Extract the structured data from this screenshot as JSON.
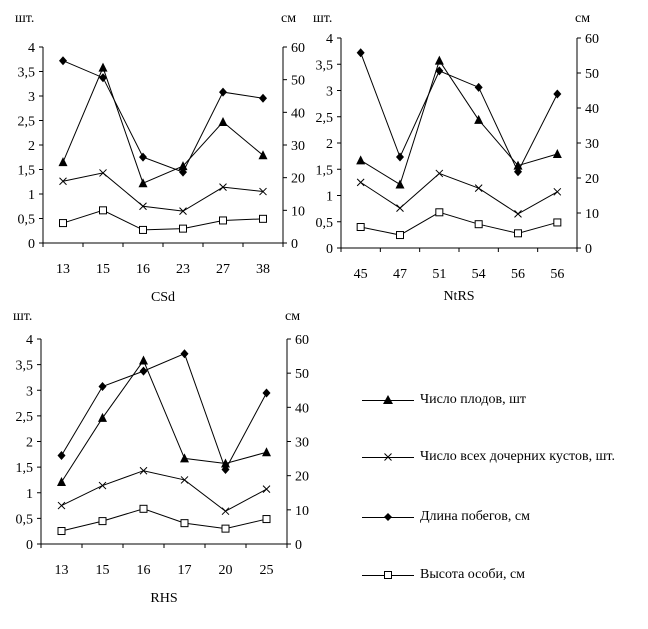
{
  "chart_data": [
    {
      "type": "line",
      "title": "CSd",
      "left_unit": "шт.",
      "right_unit": "см",
      "categories": [
        "13",
        "15",
        "16",
        "23",
        "27",
        "38"
      ],
      "left_ticks": [
        "0",
        "0,5",
        "1",
        "1,5",
        "2",
        "2,5",
        "3",
        "3,5",
        "4"
      ],
      "right_ticks": [
        "0",
        "10",
        "20",
        "30",
        "40",
        "50",
        "60"
      ],
      "ylim_left": [
        0,
        4
      ],
      "ylim_right": [
        0,
        60
      ],
      "series": [
        {
          "key": "fruits",
          "axis": "left",
          "marker": "triangle",
          "values": [
            1.65,
            3.58,
            1.22,
            1.57,
            2.47,
            1.79
          ]
        },
        {
          "key": "bushes",
          "axis": "left",
          "marker": "x",
          "values": [
            1.26,
            1.43,
            0.75,
            0.65,
            1.14,
            1.05
          ]
        },
        {
          "key": "shoots",
          "axis": "right",
          "marker": "diamond",
          "values": [
            55.8,
            50.6,
            26.3,
            21.7,
            46.2,
            44.3
          ]
        },
        {
          "key": "height",
          "axis": "right",
          "marker": "square",
          "values": [
            6.1,
            10.0,
            4.0,
            4.4,
            6.9,
            7.4
          ]
        }
      ]
    },
    {
      "type": "line",
      "title": "NtRS",
      "left_unit": "шт.",
      "right_unit": "см",
      "categories": [
        "45",
        "47",
        "51",
        "54",
        "56",
        "56"
      ],
      "left_ticks": [
        "0",
        "0,5",
        "1",
        "1,5",
        "2",
        "2,5",
        "3",
        "3,5",
        "4"
      ],
      "right_ticks": [
        "0",
        "10",
        "20",
        "30",
        "40",
        "50",
        "60"
      ],
      "ylim_left": [
        0,
        4
      ],
      "ylim_right": [
        0,
        60
      ],
      "series": [
        {
          "key": "fruits",
          "axis": "left",
          "marker": "triangle",
          "values": [
            1.67,
            1.21,
            3.57,
            2.44,
            1.57,
            1.79
          ]
        },
        {
          "key": "bushes",
          "axis": "left",
          "marker": "x",
          "values": [
            1.25,
            0.76,
            1.42,
            1.14,
            0.65,
            1.07
          ]
        },
        {
          "key": "shoots",
          "axis": "right",
          "marker": "diamond",
          "values": [
            55.8,
            26.0,
            50.6,
            45.9,
            21.8,
            44.0
          ]
        },
        {
          "key": "height",
          "axis": "right",
          "marker": "square",
          "values": [
            6.0,
            3.7,
            10.2,
            6.8,
            4.2,
            7.3
          ]
        }
      ]
    },
    {
      "type": "line",
      "title": "RHS",
      "left_unit": "шт.",
      "right_unit": "см",
      "categories": [
        "13",
        "15",
        "16",
        "17",
        "20",
        "25"
      ],
      "left_ticks": [
        "0",
        "0,5",
        "1",
        "1,5",
        "2",
        "2,5",
        "3",
        "3,5",
        "4"
      ],
      "right_ticks": [
        "0",
        "10",
        "20",
        "30",
        "40",
        "50",
        "60"
      ],
      "ylim_left": [
        0,
        4
      ],
      "ylim_right": [
        0,
        60
      ],
      "series": [
        {
          "key": "fruits",
          "axis": "left",
          "marker": "triangle",
          "values": [
            1.21,
            2.46,
            3.58,
            1.67,
            1.57,
            1.79
          ]
        },
        {
          "key": "bushes",
          "axis": "left",
          "marker": "x",
          "values": [
            0.75,
            1.14,
            1.43,
            1.25,
            0.64,
            1.07
          ]
        },
        {
          "key": "shoots",
          "axis": "right",
          "marker": "diamond",
          "values": [
            25.9,
            46.1,
            50.6,
            55.7,
            21.8,
            44.2
          ]
        },
        {
          "key": "height",
          "axis": "right",
          "marker": "square",
          "values": [
            3.8,
            6.7,
            10.3,
            6.1,
            4.5,
            7.3
          ]
        }
      ]
    }
  ],
  "legend": [
    {
      "key": "fruits",
      "marker": "triangle",
      "label": "Число плодов, шт"
    },
    {
      "key": "bushes",
      "marker": "x",
      "label": "Число всех дочерних кустов, шт."
    },
    {
      "key": "shoots",
      "marker": "diamond",
      "label": "Длина побегов, см"
    },
    {
      "key": "height",
      "marker": "square",
      "label": "Высота особи, см"
    }
  ]
}
